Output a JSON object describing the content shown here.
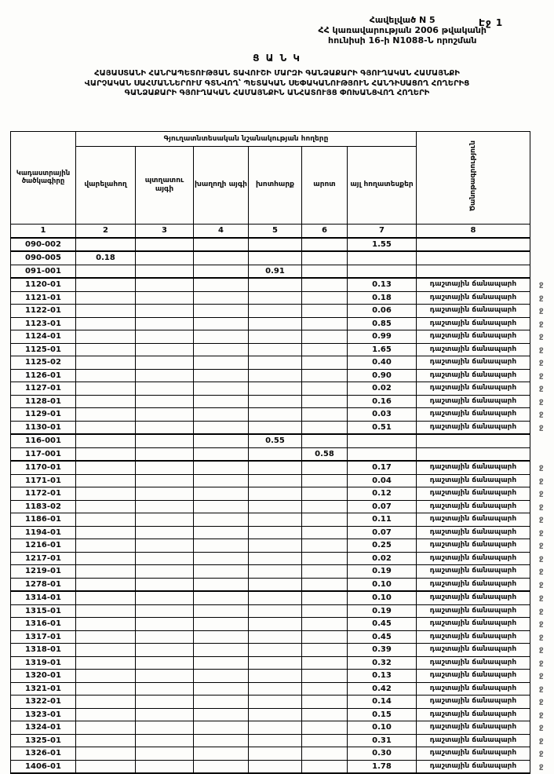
{
  "page": {
    "page_label": "Էջ 1",
    "appendix_lines": [
      "Հավելված N 5",
      "ՀՀ կառավարության 2006 թվականի",
      "հունիսի 16-ի N1088-Ն որոշման"
    ],
    "list_title": "Ց Ա Ն Կ",
    "title_lines": [
      "ՀԱՅԱՍՏԱՆԻ ՀԱՆՐԱՊԵՏՈՒԹՅԱՆ ՏԱՎՈՒՇԻ ՄԱՐԶԻ ԳԱՆՁԱՔԱՐԻ ԳՅՈՒՂԱԿԱՆ ՀԱՄԱՅՆՔԻ",
      "ՎԱՐՉԱԿԱՆ ՍԱՀՄԱՆՆԵՐՈՒՄ ԳՏՆՎՈՂ՝ ՊԵՏԱԿԱՆ ՍԵՓԱԿԱՆՈՒԹՅՈՒՆ ՀԱՆԴԻՍԱՑՈՂ ՀՈՂԵՐԻՑ",
      "ԳԱՆՁԱՔԱՐԻ ԳՅՈՒՂԱԿԱՆ ՀԱՄԱՅՆՔԻՆ ԱՆՀԱՏՈՒՅՑ ՓՈԽԱՆՑՎՈՂ ՀՈՂԵՐԻ"
    ]
  },
  "table": {
    "col1_header": "Կադաստրային ծածկագիրը",
    "group_header": "Գյուղատնտեսական նշանակության հողերը",
    "sub_headers": [
      "վարելահող",
      "պտղատու այգի",
      "խաղողի այգի",
      "խոտհարք",
      "արոտ",
      "այլ հողատեսքեր"
    ],
    "note_header": "Ծանոթագրություն",
    "number_row": [
      "1",
      "2",
      "3",
      "4",
      "5",
      "6",
      "7",
      "8"
    ],
    "note_text": "դաշտային ճանապարհ",
    "edge_mark": "ջ",
    "rows": [
      [
        "090-002",
        "",
        "",
        "",
        "",
        "",
        "1.55",
        0
      ],
      [
        "090-005",
        "0.18",
        "",
        "",
        "",
        "",
        "",
        0
      ],
      [
        "091-001",
        "",
        "",
        "",
        "0.91",
        "",
        "",
        0
      ],
      [
        "1120-01",
        "",
        "",
        "",
        "",
        "",
        "0.13",
        1
      ],
      [
        "1121-01",
        "",
        "",
        "",
        "",
        "",
        "0.18",
        1
      ],
      [
        "1122-01",
        "",
        "",
        "",
        "",
        "",
        "0.06",
        1
      ],
      [
        "1123-01",
        "",
        "",
        "",
        "",
        "",
        "0.85",
        1
      ],
      [
        "1124-01",
        "",
        "",
        "",
        "",
        "",
        "0.99",
        1
      ],
      [
        "1125-01",
        "",
        "",
        "",
        "",
        "",
        "1.65",
        1
      ],
      [
        "1125-02",
        "",
        "",
        "",
        "",
        "",
        "0.40",
        1
      ],
      [
        "1126-01",
        "",
        "",
        "",
        "",
        "",
        "0.90",
        1
      ],
      [
        "1127-01",
        "",
        "",
        "",
        "",
        "",
        "0.02",
        1
      ],
      [
        "1128-01",
        "",
        "",
        "",
        "",
        "",
        "0.16",
        1
      ],
      [
        "1129-01",
        "",
        "",
        "",
        "",
        "",
        "0.03",
        1
      ],
      [
        "1130-01",
        "",
        "",
        "",
        "",
        "",
        "0.51",
        1
      ],
      [
        "116-001",
        "",
        "",
        "",
        "0.55",
        "",
        "",
        0
      ],
      [
        "117-001",
        "",
        "",
        "",
        "",
        "0.58",
        "",
        0
      ],
      [
        "1170-01",
        "",
        "",
        "",
        "",
        "",
        "0.17",
        1
      ],
      [
        "1171-01",
        "",
        "",
        "",
        "",
        "",
        "0.04",
        1
      ],
      [
        "1172-01",
        "",
        "",
        "",
        "",
        "",
        "0.12",
        1
      ],
      [
        "1183-02",
        "",
        "",
        "",
        "",
        "",
        "0.07",
        1
      ],
      [
        "1186-01",
        "",
        "",
        "",
        "",
        "",
        "0.11",
        1
      ],
      [
        "1194-01",
        "",
        "",
        "",
        "",
        "",
        "0.07",
        1
      ],
      [
        "1216-01",
        "",
        "",
        "",
        "",
        "",
        "0.25",
        1
      ],
      [
        "1217-01",
        "",
        "",
        "",
        "",
        "",
        "0.02",
        1
      ],
      [
        "1219-01",
        "",
        "",
        "",
        "",
        "",
        "0.19",
        1
      ],
      [
        "1278-01",
        "",
        "",
        "",
        "",
        "",
        "0.10",
        1
      ],
      [
        "1314-01",
        "",
        "",
        "",
        "",
        "",
        "0.10",
        1
      ],
      [
        "1315-01",
        "",
        "",
        "",
        "",
        "",
        "0.19",
        1
      ],
      [
        "1316-01",
        "",
        "",
        "",
        "",
        "",
        "0.45",
        1
      ],
      [
        "1317-01",
        "",
        "",
        "",
        "",
        "",
        "0.45",
        1
      ],
      [
        "1318-01",
        "",
        "",
        "",
        "",
        "",
        "0.39",
        1
      ],
      [
        "1319-01",
        "",
        "",
        "",
        "",
        "",
        "0.32",
        1
      ],
      [
        "1320-01",
        "",
        "",
        "",
        "",
        "",
        "0.13",
        1
      ],
      [
        "1321-01",
        "",
        "",
        "",
        "",
        "",
        "0.42",
        1
      ],
      [
        "1322-01",
        "",
        "",
        "",
        "",
        "",
        "0.14",
        1
      ],
      [
        "1323-01",
        "",
        "",
        "",
        "",
        "",
        "0.15",
        1
      ],
      [
        "1324-01",
        "",
        "",
        "",
        "",
        "",
        "0.10",
        1
      ],
      [
        "1325-01",
        "",
        "",
        "",
        "",
        "",
        "0.31",
        1
      ],
      [
        "1326-01",
        "",
        "",
        "",
        "",
        "",
        "0.30",
        1
      ],
      [
        "1406-01",
        "",
        "",
        "",
        "",
        "",
        "1.78",
        1
      ]
    ]
  }
}
